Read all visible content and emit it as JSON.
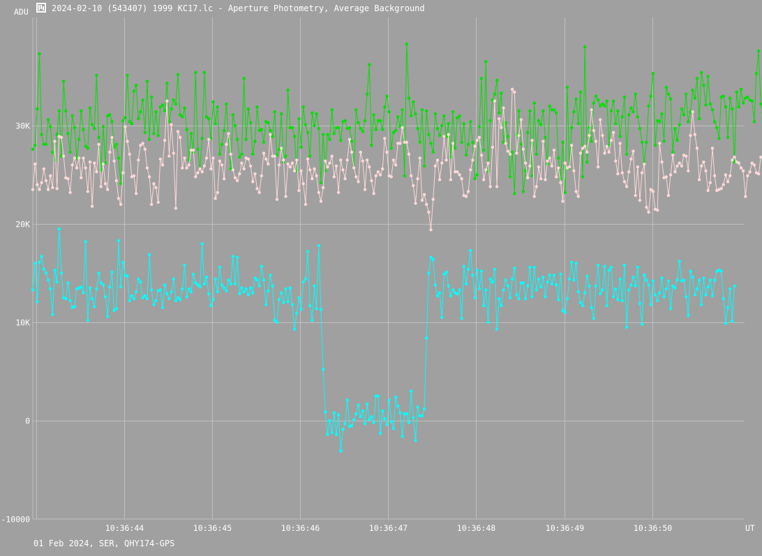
{
  "window": {
    "title": "2024-02-10 (543407) 1999 KC17.lc - Aperture Photometry, Average Background",
    "icon": "occultation-logo-icon"
  },
  "footer": {
    "text": "01 Feb 2024, SER, QHY174-GPS"
  },
  "colors": {
    "background": "#a0a0a0",
    "grid": "#c0c0c0",
    "green": "#00e000",
    "pink": "#ffd8d8",
    "cyan": "#00ffff",
    "text": "#ffffff"
  },
  "chart_data": {
    "type": "line",
    "ylabel": "ADU",
    "xlabel": "UT",
    "ylim": [
      -10000,
      41000
    ],
    "xlim": [
      "10:36:42.96",
      "10:36:51.05"
    ],
    "grid": true,
    "y_ticks": [
      {
        "value": -10000,
        "label": "-10000"
      },
      {
        "value": 0,
        "label": "0"
      },
      {
        "value": 10000,
        "label": "10K"
      },
      {
        "value": 20000,
        "label": "20K"
      },
      {
        "value": 30000,
        "label": "30K"
      }
    ],
    "x_ticks": [
      {
        "value": "10:36:43",
        "label": ""
      },
      {
        "value": "10:36:44",
        "label": "10:36:44"
      },
      {
        "value": "10:36:45",
        "label": "10:36:45"
      },
      {
        "value": "10:36:46",
        "label": "10:36:46"
      },
      {
        "value": "10:36:47",
        "label": "10:36:47"
      },
      {
        "value": "10:36:48",
        "label": "10:36:48"
      },
      {
        "value": "10:36:49",
        "label": "10:36:49"
      },
      {
        "value": "10:36:50",
        "label": "10:36:50"
      }
    ],
    "series": [
      {
        "color": "#00e000",
        "x_start": "10:36:42.96",
        "x_step_s": 0.025,
        "values": [
          27600,
          28000,
          31700,
          37300,
          29100,
          28100,
          28100,
          30600,
          29900,
          27300,
          26500,
          29100,
          31500,
          26900,
          34500,
          31500,
          29200,
          27300,
          31000,
          29800,
          26700,
          28600,
          31500,
          29600,
          27900,
          27700,
          31800,
          30100,
          29700,
          35100,
          28800,
          25500,
          29900,
          26200,
          31000,
          31100,
          30400,
          27800,
          28100,
          26700,
          24100,
          30500,
          30800,
          35100,
          30400,
          30200,
          33500,
          34100,
          30700,
          31400,
          32600,
          29300,
          34500,
          28600,
          32900,
          29200,
          31400,
          29000,
          31900,
          32100,
          31500,
          34300,
          30400,
          31700,
          32600,
          32200,
          35200,
          31100,
          30900,
          31800,
          29600,
          26500,
          29200,
          27300,
          35400,
          27600,
          25600,
          28700,
          35400,
          30900,
          30700,
          28700,
          32400,
          30200,
          31900,
          27100,
          28100,
          29500,
          32200,
          28600,
          25600,
          31100,
          30000,
          28600,
          26800,
          27100,
          34800,
          28600,
          31700,
          30300,
          27100,
          28400,
          31900,
          29500,
          29600,
          28300,
          30400,
          30300,
          29500,
          28900,
          31400,
          27000,
          27600,
          31200,
          26300,
          26900,
          33600,
          29800,
          29800,
          28900,
          25400,
          30700,
          27800,
          31900,
          30100,
          29300,
          26900,
          31300,
          30000,
          31200,
          29700,
          24200,
          29100,
          25400,
          29100,
          28600,
          31600,
          29200,
          29800,
          29800,
          28500,
          30400,
          30500,
          29700,
          29800,
          28400,
          25700,
          31600,
          30300,
          29700,
          29400,
          30500,
          33200,
          36200,
          28000,
          31100,
          29600,
          30500,
          30500,
          29600,
          31900,
          33000,
          31400,
          27700,
          29300,
          29500,
          30900,
          29900,
          31600,
          24900,
          38300,
          32800,
          31000,
          32400,
          31200,
          29700,
          28300,
          31600,
          25900,
          31500,
          29100,
          28200,
          27300,
          31200,
          29700,
          29000,
          30000,
          31000,
          28900,
          30200,
          26800,
          31400,
          27700,
          30800,
          31000,
          28300,
          30200,
          27000,
          28100,
          30400,
          28300,
          24600,
          25000,
          29900,
          34800,
          27500,
          36500,
          25400,
          30500,
          32600,
          33200,
          34600,
          31300,
          33300,
          28300,
          30300,
          28900,
          24800,
          27300,
          23100,
          29100,
          31500,
          28100,
          23300,
          25400,
          29300,
          31500,
          24900,
          32300,
          27100,
          30500,
          30100,
          31500,
          28800,
          26100,
          32000,
          31600,
          31600,
          31300,
          26700,
          24600,
          28300,
          23200,
          33900,
          25700,
          29800,
          31400,
          32700,
          30200,
          33400,
          24800,
          38000,
          26300,
          29800,
          28400,
          32300,
          33000,
          32600,
          32000,
          32200,
          32000,
          32500,
          28000,
          31500,
          32500,
          30200,
          31500,
          28900,
          30900,
          32900,
          27100,
          31100,
          31800,
          31400,
          33200,
          30900,
          29700,
          28300,
          26200,
          28300,
          32000,
          33000,
          35300,
          28000,
          30500,
          30400,
          31200,
          28400,
          33900,
          33200,
          32700,
          27300,
          29700,
          28500,
          30100,
          31700,
          31100,
          33200,
          30400,
          31400,
          33600,
          32800,
          34800,
          30700,
          35400,
          34100,
          32100,
          35000,
          32200,
          31600,
          30400,
          29800,
          28700,
          32900,
          33000,
          31900,
          28800,
          32800,
          31700,
          26300,
          33400,
          31900,
          33700,
          32300,
          32800,
          32900,
          32600,
          32500,
          30400,
          35300,
          37600,
          32200,
          31300,
          30300,
          33300,
          28700,
          37400,
          29900,
          30100,
          31000,
          28800,
          32900,
          31100,
          26600,
          30800,
          31100,
          25900,
          31300,
          31200,
          30300
        ]
      },
      {
        "color": "#ffd8d8",
        "x_start": "10:36:42.96",
        "x_step_s": 0.025,
        "values": [
          23500,
          26100,
          24000,
          23500,
          24200,
          25600,
          24400,
          23500,
          24900,
          23700,
          28400,
          23600,
          28900,
          28800,
          26900,
          24700,
          24600,
          23200,
          26000,
          26700,
          25700,
          26700,
          24700,
          26700,
          25700,
          23300,
          26300,
          21800,
          26200,
          25300,
          28100,
          23800,
          26100,
          24100,
          23500,
          27300,
          28800,
          26400,
          24400,
          22600,
          22000,
          25200,
          29900,
          28400,
          27100,
          24800,
          24900,
          23100,
          26500,
          28000,
          28200,
          27600,
          25700,
          24800,
          22000,
          24100,
          23700,
          22200,
          26600,
          26000,
          28500,
          32500,
          26900,
          30100,
          27200,
          21600,
          29400,
          28800,
          25700,
          26700,
          25700,
          26000,
          27500,
          27500,
          24800,
          25200,
          25600,
          25300,
          25900,
          26700,
          28600,
          25600,
          26700,
          22600,
          23200,
          26400,
          26000,
          24600,
          28100,
          29200,
          27100,
          25500,
          24700,
          24400,
          25100,
          26200,
          25600,
          26700,
          26600,
          25900,
          24300,
          25100,
          23600,
          23200,
          24900,
          27200,
          26600,
          26100,
          29100,
          26900,
          26900,
          22500,
          26000,
          27700,
          26500,
          22800,
          26100,
          25800,
          26200,
          25400,
          26500,
          23400,
          25400,
          24100,
          22000,
          26600,
          25500,
          24600,
          25600,
          24900,
          23200,
          22300,
          23700,
          26400,
          25800,
          26200,
          26900,
          24800,
          25900,
          23200,
          26500,
          25500,
          24600,
          26500,
          28600,
          27300,
          25700,
          24800,
          24300,
          27300,
          26400,
          23500,
          26500,
          25800,
          24400,
          23100,
          24900,
          25300,
          25000,
          25600,
          28700,
          27300,
          24900,
          24800,
          26500,
          26000,
          28200,
          28200,
          29800,
          28300,
          28300,
          27100,
          24900,
          23900,
          22100,
          24600,
          26700,
          22400,
          23000,
          22000,
          21200,
          19400,
          22500,
          25900,
          26500,
          24500,
          26200,
          28900,
          26500,
          29100,
          24500,
          28200,
          25300,
          25300,
          25000,
          24600,
          22900,
          22800,
          23300,
          25500,
          26500,
          27900,
          28500,
          28800,
          27000,
          24500,
          25500,
          26200,
          23800,
          27800,
          32500,
          23800,
          30700,
          29800,
          31800,
          28200,
          27400,
          27100,
          33700,
          33400,
          27200,
          29000,
          30600,
          27600,
          26200,
          24700,
          25900,
          28500,
          22800,
          23800,
          25800,
          24600,
          28400,
          24500,
          26400,
          26700,
          25900,
          27500,
          24800,
          25700,
          24200,
          22300,
          26200,
          25700,
          25800,
          28000,
          25400,
          23300,
          22800,
          27200,
          27700,
          27900,
          27300,
          29000,
          31600,
          29500,
          28400,
          25800,
          30600,
          29000,
          27200,
          27900,
          27300,
          28500,
          29300,
          26400,
          25100,
          28200,
          25200,
          24300,
          23800,
          25300,
          26600,
          27400,
          22900,
          25800,
          22400,
          25200,
          26100,
          21700,
          21200,
          23500,
          23300,
          21500,
          21400,
          28200,
          26300,
          24700,
          24800,
          22900,
          25000,
          27000,
          25300,
          25900,
          26200,
          25900,
          27000,
          26900,
          25400,
          29000,
          31400,
          29100,
          27700,
          24500,
          25900,
          26300,
          25400,
          23400,
          24200,
          27700,
          24900,
          23400,
          23500,
          23600,
          24000,
          25000,
          24300,
          24900,
          26500,
          26800,
          26300,
          26200,
          25700,
          25400,
          22800,
          24900,
          25300,
          26200,
          26000,
          25200,
          25100,
          26800,
          26800,
          28800,
          28500,
          29100,
          30700,
          28800,
          27500,
          27000,
          25200,
          23600,
          27700,
          26900,
          29700,
          25200,
          23800,
          24700,
          22000,
          26700,
          25600,
          27600,
          25800,
          26600,
          27100
        ]
      },
      {
        "color": "#00ffff",
        "x_start": "10:36:42.96",
        "x_step_s": 0.025,
        "values": [
          13300,
          16000,
          12100,
          16100,
          16700,
          15400,
          15000,
          14300,
          13400,
          10800,
          15300,
          14100,
          19500,
          15000,
          12500,
          12400,
          14000,
          12200,
          11500,
          11600,
          13400,
          13500,
          13600,
          13000,
          18200,
          10200,
          13500,
          12400,
          11600,
          13400,
          15000,
          14000,
          13800,
          12600,
          10600,
          13600,
          15100,
          11200,
          11400,
          18300,
          13600,
          16100,
          14800,
          14700,
          12200,
          12700,
          12400,
          13100,
          14400,
          14100,
          12500,
          12700,
          12400,
          16900,
          13300,
          11800,
          12200,
          13200,
          13300,
          11500,
          13800,
          12900,
          12400,
          13100,
          14400,
          12200,
          12500,
          12300,
          13400,
          15800,
          12600,
          13400,
          13100,
          14900,
          14000,
          13800,
          13600,
          18000,
          13900,
          14600,
          12900,
          11700,
          12300,
          14400,
          13100,
          15600,
          13800,
          13500,
          13200,
          14300,
          13900,
          16700,
          13900,
          16600,
          12900,
          13500,
          13100,
          13400,
          12800,
          13500,
          13000,
          14500,
          14300,
          13700,
          15700,
          14300,
          11800,
          13200,
          14800,
          13700,
          10200,
          10000,
          12300,
          13000,
          12000,
          13400,
          12100,
          13500,
          11800,
          9300,
          10900,
          12500,
          11300,
          14100,
          14400,
          17200,
          11700,
          10200,
          13700,
          11400,
          17800,
          11300,
          5200,
          900,
          -1400,
          0,
          -1200,
          800,
          -1400,
          600,
          -3100,
          -900,
          -300,
          2100,
          -600,
          -500,
          100,
          700,
          1600,
          400,
          1000,
          -300,
          1700,
          100,
          400,
          -200,
          2500,
          2500,
          -1300,
          1000,
          200,
          -400,
          2100,
          -100,
          -800,
          2400,
          1500,
          800,
          -1600,
          700,
          700,
          -200,
          3000,
          300,
          -2000,
          1400,
          500,
          500,
          1200,
          8400,
          15000,
          16600,
          16400,
          13800,
          12700,
          13000,
          10500,
          14900,
          15100,
          13700,
          12700,
          13300,
          13000,
          12900,
          13300,
          10400,
          15700,
          13900,
          15400,
          17300,
          14800,
          12500,
          15300,
          13400,
          15200,
          11700,
          13300,
          10000,
          14400,
          14100,
          15400,
          9300,
          12400,
          11700,
          13300,
          14300,
          13700,
          12500,
          14400,
          15500,
          12800,
          12400,
          14000,
          14000,
          12400,
          13700,
          15600,
          12600,
          15600,
          13300,
          14400,
          13600,
          14600,
          12600,
          14100,
          14800,
          13900,
          14800,
          13800,
          12300,
          14900,
          11200,
          11000,
          12400,
          14400,
          16100,
          14300,
          16000,
          13100,
          12000,
          11700,
          13000,
          14700,
          13700,
          11500,
          10400,
          13700,
          15800,
          12900,
          13300,
          15700,
          11700,
          15300,
          15600,
          12600,
          13400,
          12300,
          14400,
          12200,
          15800,
          9500,
          13300,
          13800,
          14600,
          13700,
          15600,
          11900,
          9800,
          14800,
          14300,
          13800,
          11800,
          14200,
          12800,
          12200,
          13000,
          14500,
          12600,
          13400,
          14200,
          11400,
          13700,
          13500,
          14300,
          16200,
          14200,
          14300,
          12600,
          10700,
          15200,
          14600,
          12800,
          13400,
          14300,
          11800,
          14500,
          12800,
          13600,
          14300,
          12700,
          14300,
          15200,
          15300,
          15200,
          12400,
          9900,
          11500,
          13400,
          10100,
          13700
        ]
      }
    ]
  }
}
